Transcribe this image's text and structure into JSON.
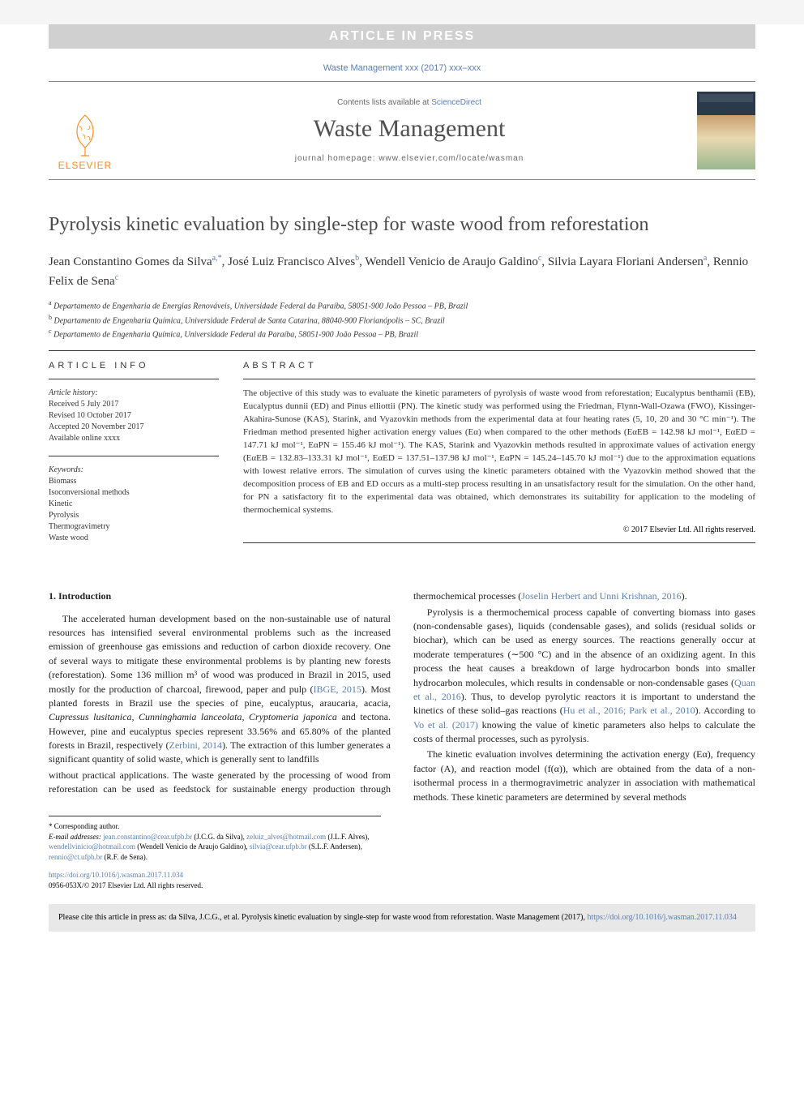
{
  "banner": "ARTICLE IN PRESS",
  "topCite": "Waste Management xxx (2017) xxx–xxx",
  "header": {
    "contentsPrefix": "Contents lists available at ",
    "contentsLink": "ScienceDirect",
    "journal": "Waste Management",
    "homepage": "journal homepage: www.elsevier.com/locate/wasman",
    "publisher": "ELSEVIER"
  },
  "title": "Pyrolysis kinetic evaluation by single-step for waste wood from reforestation",
  "authors": "Jean Constantino Gomes da Silva<sup>a,*</sup>, José Luiz Francisco Alves<sup>b</sup>, Wendell Venicio de Araujo Galdino<sup>c</sup>, Silvia Layara Floriani Andersen<sup>a</sup>, Rennio Felix de Sena<sup>c</sup>",
  "affiliations": [
    "<sup>a</sup> Departamento de Engenharia de Energias Renováveis, Universidade Federal da Paraíba, 58051-900 João Pessoa – PB, Brazil",
    "<sup>b</sup> Departamento de Engenharia Química, Universidade Federal de Santa Catarina, 88040-900 Florianópolis – SC, Brazil",
    "<sup>c</sup> Departamento de Engenharia Química, Universidade Federal da Paraíba, 58051-900 João Pessoa – PB, Brazil"
  ],
  "articleInfo": {
    "header": "ARTICLE INFO",
    "historyLabel": "Article history:",
    "history": [
      "Received 5 July 2017",
      "Revised 10 October 2017",
      "Accepted 20 November 2017",
      "Available online xxxx"
    ],
    "keywordsLabel": "Keywords:",
    "keywords": [
      "Biomass",
      "Isoconversional methods",
      "Kinetic",
      "Pyrolysis",
      "Thermogravimetry",
      "Waste wood"
    ]
  },
  "abstract": {
    "header": "ABSTRACT",
    "text": "The objective of this study was to evaluate the kinetic parameters of pyrolysis of waste wood from reforestation; Eucalyptus benthamii (EB), Eucalyptus dunnii (ED) and Pinus elliottii (PN). The kinetic study was performed using the Friedman, Flynn-Wall-Ozawa (FWO), Kissinger-Akahira-Sunose (KAS), Starink, and Vyazovkin methods from the experimental data at four heating rates (5, 10, 20 and 30 °C min⁻¹). The Friedman method presented higher activation energy values (Eα) when compared to the other methods (EαEB = 142.98 kJ mol⁻¹, EαED = 147.71 kJ mol⁻¹, EαPN = 155.46 kJ mol⁻¹). The KAS, Starink and Vyazovkin methods resulted in approximate values of activation energy (EαEB = 132.83–133.31 kJ mol⁻¹, EαED = 137.51–137.98 kJ mol⁻¹, EαPN = 145.24–145.70 kJ mol⁻¹) due to the approximation equations with lowest relative errors. The simulation of curves using the kinetic parameters obtained with the Vyazovkin method showed that the decomposition process of EB and ED occurs as a multi-step process resulting in an unsatisfactory result for the simulation. On the other hand, for PN a satisfactory fit to the experimental data was obtained, which demonstrates its suitability for application to the modeling of thermochemical systems.",
    "copyright": "© 2017 Elsevier Ltd. All rights reserved."
  },
  "introHeading": "1. Introduction",
  "introParagraphs": [
    "The accelerated human development based on the non-sustainable use of natural resources has intensified several environmental problems such as the increased emission of greenhouse gas emissions and reduction of carbon dioxide recovery. One of several ways to mitigate these environmental problems is by planting new forests (reforestation). Some 136 million m³ of wood was produced in Brazil in 2015, used mostly for the production of charcoal, firewood, paper and pulp (<span class=\"ref\">IBGE, 2015</span>). Most planted forests in Brazil use the species of pine, eucalyptus, araucaria, acacia, <i>Cupressus lusitanica, Cunninghamia lanceolata, Cryptomeria japonica</i> and tectona. However, pine and eucalyptus species represent 33.56% and 65.80% of the planted forests in Brazil, respectively (<span class=\"ref\">Zerbini, 2014</span>). The extraction of this lumber generates a significant quantity of solid waste, which is generally sent to landfills",
    "without practical applications. The waste generated by the processing of wood from reforestation can be used as feedstock for sustainable energy production through thermochemical processes (<span class=\"ref\">Joselin Herbert and Unni Krishnan, 2016</span>).",
    "Pyrolysis is a thermochemical process capable of converting biomass into gases (non-condensable gases), liquids (condensable gases), and solids (residual solids or biochar), which can be used as energy sources. The reactions generally occur at moderate temperatures (∼500 °C) and in the absence of an oxidizing agent. In this process the heat causes a breakdown of large hydrocarbon bonds into smaller hydrocarbon molecules, which results in condensable or non-condensable gases (<span class=\"ref\">Quan et al., 2016</span>). Thus, to develop pyrolytic reactors it is important to understand the kinetics of these solid–gas reactions (<span class=\"ref\">Hu et al., 2016; Park et al., 2010</span>). According to <span class=\"ref\">Vo et al. (2017)</span> knowing the value of kinetic parameters also helps to calculate the costs of thermal processes, such as pyrolysis.",
    "The kinetic evaluation involves determining the activation energy (Eα), frequency factor (A), and reaction model (f(α)), which are obtained from the data of a non-isothermal process in a thermogravimetric analyzer in association with mathematical methods. These kinetic parameters are determined by several methods"
  ],
  "footnotes": {
    "corr": "* Corresponding author.",
    "emailsLabel": "E-mail addresses:",
    "emails": "<a>jean.constantino@cear.ufpb.br</a> (J.C.G. da Silva), <a>zeluiz_alves@hotmail.com</a> (J.L.F. Alves), <a>wendellvinicio@hotmail.com</a> (Wendell Venicio de Araujo Galdino), <a>silvia@cear.ufpb.br</a> (S.L.F. Andersen), <a>rennio@ct.ufpb.br</a> (R.F. de Sena)."
  },
  "doi": {
    "link": "https://doi.org/10.1016/j.wasman.2017.11.034",
    "issn": "0956-053X/© 2017 Elsevier Ltd. All rights reserved."
  },
  "citeBox": {
    "text": "Please cite this article in press as: da Silva, J.C.G., et al. Pyrolysis kinetic evaluation by single-step for waste wood from reforestation. Waste Management (2017), ",
    "link": "https://doi.org/10.1016/j.wasman.2017.11.034"
  },
  "colors": {
    "link": "#5b7db1",
    "banner_bg": "#d0d0d0",
    "orange": "#ff8a1f",
    "citebox_bg": "#e8e8e8"
  }
}
